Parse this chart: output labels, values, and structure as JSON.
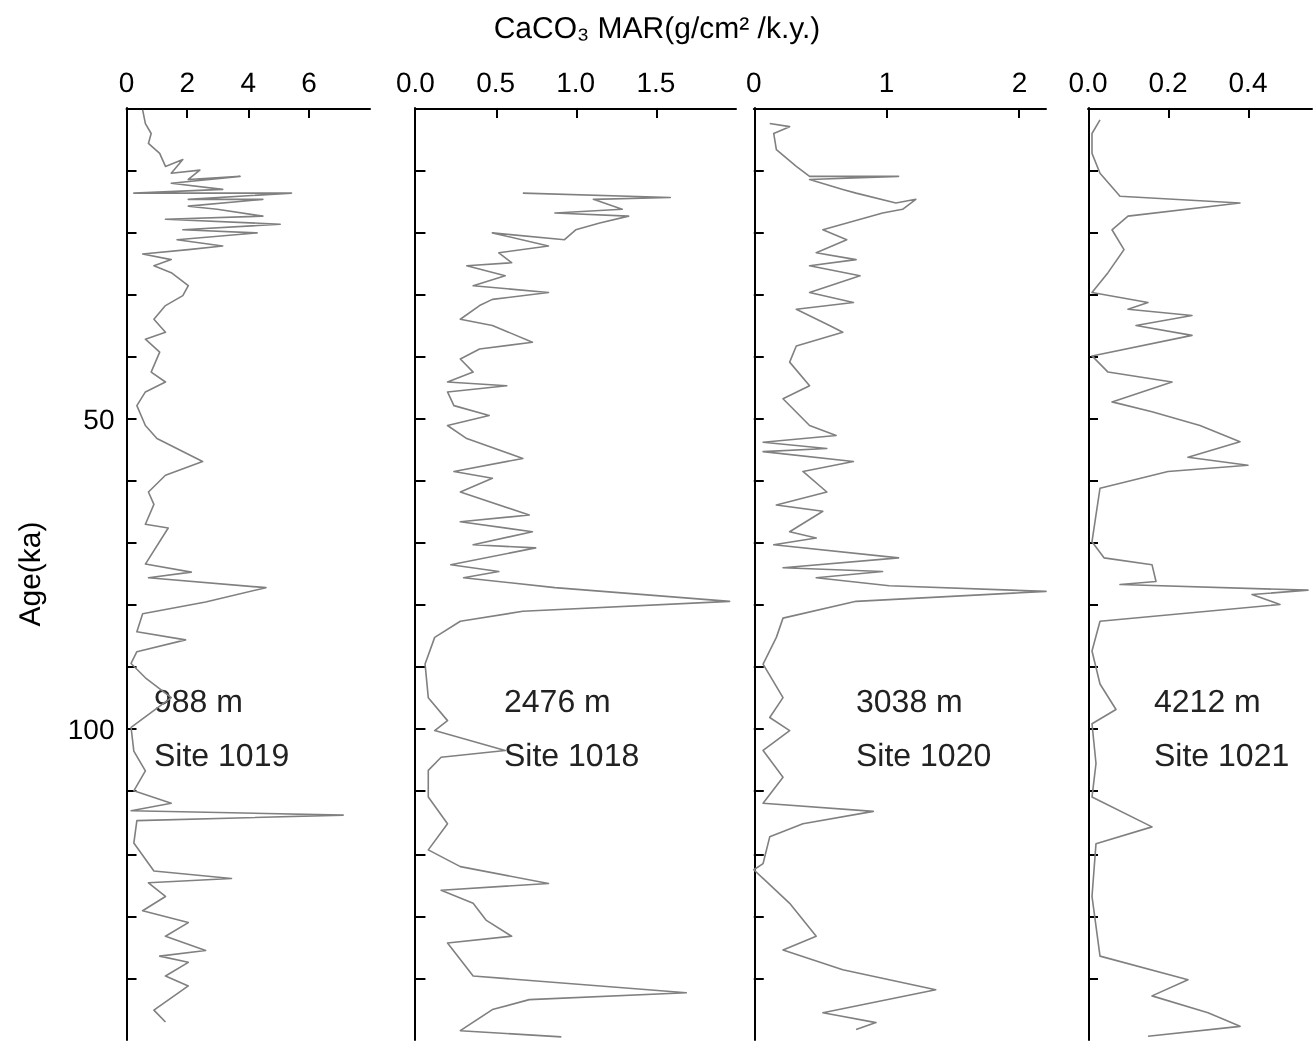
{
  "chart_data": [
    {
      "type": "line",
      "xlabel": "CaCO₃ MAR(g/cm² /k.y.)",
      "ylabel": "Age(ka)",
      "annotations": [
        "988 m\nSite 1019"
      ],
      "xlim": [
        0,
        8
      ],
      "xticks": [
        0,
        2,
        4,
        6
      ],
      "ylim": [
        150,
        0
      ],
      "yticks": [
        {
          "value": 10,
          "label": null
        },
        {
          "value": 20,
          "label": null
        },
        {
          "value": 30,
          "label": null
        },
        {
          "value": 40,
          "label": null
        },
        50,
        {
          "value": 60,
          "label": null
        },
        {
          "value": 70,
          "label": null
        },
        {
          "value": 80,
          "label": null
        },
        {
          "value": 90,
          "label": null
        },
        100,
        {
          "value": 110,
          "label": null
        },
        {
          "value": 120,
          "label": null
        },
        {
          "value": 130,
          "label": null
        },
        {
          "value": 140,
          "label": null
        }
      ],
      "series": [
        {
          "color": "#808080",
          "x": [
            0.53,
            0.62,
            0.81,
            0.72,
            1.09,
            1.28,
            1.85,
            1.47,
            2.41,
            2.03,
            3.73,
            1.47,
            3.16,
            0.24,
            5.42,
            2.03,
            4.48,
            2.03,
            2.98,
            4.48,
            1.28,
            5.05,
            1.85,
            4.29,
            1.66,
            3.16,
            2.03,
            0.53,
            1.47,
            0.9,
            1.47,
            2.03,
            1.85,
            1.28,
            0.9,
            1.28,
            0.62,
            1.09,
            0.81,
            1.28,
            0.62,
            0.34,
            0.62,
            1.0,
            2.5,
            1.28,
            0.72,
            0.9,
            0.62,
            1.37,
            0.62,
            2.13,
            0.72,
            4.58,
            2.6,
            0.53,
            0.34,
            1.94,
            0.34,
            0.15,
            0.62,
            1.47,
            0.15,
            0.24,
            0.62,
            0.24,
            1.47,
            0.15,
            7.12,
            0.34,
            0.24,
            0.9,
            3.45,
            0.72,
            1.28,
            0.53,
            2.03,
            1.28,
            2.6,
            1.09,
            2.03,
            1.28,
            2.03,
            0.9,
            1.28
          ],
          "values": [
            0.3,
            2.5,
            4.1,
            5.7,
            7.3,
            9.4,
            8.3,
            10.5,
            10.0,
            11.5,
            11.0,
            12.1,
            13.1,
            13.7,
            13.7,
            14.7,
            14.7,
            15.8,
            16.3,
            17.4,
            17.9,
            18.7,
            19.6,
            20.1,
            21.2,
            22.2,
            22.8,
            23.5,
            24.4,
            25.4,
            26.5,
            28.6,
            30.2,
            31.8,
            34.0,
            36.1,
            37.2,
            39.3,
            42.5,
            44.1,
            45.7,
            47.9,
            51.1,
            53.2,
            56.9,
            59.1,
            61.8,
            63.8,
            67.0,
            67.6,
            73.4,
            74.7,
            75.6,
            77.2,
            79.5,
            81.4,
            84.3,
            85.6,
            87.5,
            89.4,
            91.7,
            94.9,
            99.7,
            103.5,
            106.7,
            109.9,
            111.9,
            113.1,
            113.8,
            114.7,
            118.3,
            122.8,
            124.0,
            124.7,
            126.9,
            129.2,
            131.1,
            133.3,
            135.6,
            136.5,
            137.5,
            139.7,
            141.3,
            145.2,
            147.1
          ]
        }
      ]
    },
    {
      "type": "line",
      "annotations": [
        "2476 m\nSite 1018"
      ],
      "tick_labels": "x",
      "xlim": [
        0,
        2.0
      ],
      "xticks": [
        {
          "value": 0,
          "label": "0.0"
        },
        {
          "value": 0.5,
          "label": "0.5"
        },
        {
          "value": 1,
          "label": "1.0"
        },
        {
          "value": 1.5,
          "label": "1.5"
        }
      ],
      "ylim": [
        150,
        0
      ],
      "yticks": [
        {
          "value": 10,
          "label": null
        },
        {
          "value": 20,
          "label": null
        },
        {
          "value": 30,
          "label": null
        },
        {
          "value": 40,
          "label": null
        },
        {
          "value": 50,
          "label": null
        },
        {
          "value": 60,
          "label": null
        },
        {
          "value": 70,
          "label": null
        },
        {
          "value": 80,
          "label": null
        },
        {
          "value": 90,
          "label": null
        },
        {
          "value": 100,
          "label": null
        },
        {
          "value": 110,
          "label": null
        },
        {
          "value": 120,
          "label": null
        },
        {
          "value": 130,
          "label": null
        },
        {
          "value": 140,
          "label": null
        }
      ],
      "series": [
        {
          "color": "#808080",
          "x": [
            0.67,
            1.59,
            1.11,
            1.29,
            0.87,
            1.33,
            1.15,
            1.0,
            0.93,
            0.48,
            0.83,
            0.52,
            0.6,
            0.32,
            0.56,
            0.36,
            0.83,
            0.48,
            0.4,
            0.28,
            0.48,
            0.73,
            0.4,
            0.28,
            0.36,
            0.2,
            0.57,
            0.2,
            0.24,
            0.46,
            0.2,
            0.32,
            0.67,
            0.24,
            0.48,
            0.28,
            0.71,
            0.28,
            0.73,
            0.36,
            0.75,
            0.22,
            0.52,
            0.3,
            0.87,
            1.96,
            0.67,
            0.28,
            0.12,
            0.06,
            0.08,
            0.2,
            0.12,
            0.56,
            0.16,
            0.08,
            0.08,
            0.2,
            0.08,
            0.28,
            0.83,
            0.16,
            0.36,
            0.44,
            0.6,
            0.2,
            0.36,
            1.69,
            0.71,
            0.48,
            0.28,
            0.91
          ],
          "values": [
            13.7,
            14.4,
            14.7,
            16.3,
            16.9,
            17.4,
            18.5,
            19.6,
            21.2,
            20.1,
            22.2,
            23.3,
            24.9,
            25.4,
            27.0,
            28.6,
            29.7,
            30.8,
            31.8,
            34.0,
            35.0,
            37.7,
            38.8,
            40.4,
            42.5,
            44.1,
            44.7,
            45.7,
            47.9,
            49.5,
            51.1,
            53.2,
            56.4,
            58.5,
            59.6,
            61.8,
            65.5,
            66.6,
            68.2,
            70.3,
            70.8,
            73.5,
            74.6,
            75.6,
            77.2,
            79.4,
            81.0,
            82.6,
            85.2,
            89.5,
            94.9,
            98.6,
            100.2,
            103.4,
            104.5,
            106.6,
            110.9,
            115.2,
            119.4,
            122.1,
            124.8,
            125.9,
            128.0,
            130.7,
            133.3,
            134.4,
            139.7,
            142.4,
            143.5,
            145.1,
            148.5,
            149.5
          ]
        }
      ]
    },
    {
      "type": "line",
      "annotations": [
        "3038 m\nSite 1020"
      ],
      "tick_labels": "x",
      "xlim": [
        0,
        2.2
      ],
      "xticks": [
        0,
        1,
        2
      ],
      "ylim": [
        150,
        0
      ],
      "yticks": [
        {
          "value": 10,
          "label": null
        },
        {
          "value": 20,
          "label": null
        },
        {
          "value": 30,
          "label": null
        },
        {
          "value": 40,
          "label": null
        },
        {
          "value": 50,
          "label": null
        },
        {
          "value": 60,
          "label": null
        },
        {
          "value": 70,
          "label": null
        },
        {
          "value": 80,
          "label": null
        },
        {
          "value": 90,
          "label": null
        },
        {
          "value": 100,
          "label": null
        },
        {
          "value": 110,
          "label": null
        },
        {
          "value": 120,
          "label": null
        },
        {
          "value": 130,
          "label": null
        },
        {
          "value": 140,
          "label": null
        }
      ],
      "series": [
        {
          "color": "#808080",
          "x": [
            0.12,
            0.27,
            0.15,
            0.17,
            0.32,
            0.42,
            1.09,
            0.42,
            0.67,
            0.77,
            1.07,
            1.22,
            1.12,
            0.97,
            0.52,
            0.7,
            0.47,
            0.77,
            0.42,
            0.8,
            0.42,
            0.75,
            0.32,
            0.57,
            0.67,
            0.32,
            0.27,
            0.42,
            0.22,
            0.42,
            0.62,
            0.07,
            0.55,
            0.07,
            0.75,
            0.37,
            0.55,
            0.17,
            0.52,
            0.27,
            0.47,
            0.15,
            1.09,
            0.22,
            0.97,
            0.47,
            1.02,
            2.2,
            0.77,
            0.22,
            0.17,
            0.07,
            0.22,
            0.12,
            0.27,
            0.07,
            0.22,
            0.07,
            0.9,
            0.37,
            0.12,
            0.07,
            0.0,
            0.27,
            0.47,
            0.22,
            0.67,
            1.37,
            0.52,
            0.92,
            0.77
          ],
          "values": [
            2.5,
            3.0,
            4.1,
            6.7,
            9.4,
            11.0,
            11.0,
            11.5,
            13.1,
            13.7,
            15.3,
            14.7,
            16.3,
            16.9,
            19.6,
            21.2,
            23.3,
            24.4,
            25.4,
            27.0,
            29.7,
            31.3,
            32.4,
            35.0,
            36.1,
            38.3,
            40.9,
            44.7,
            46.8,
            51.1,
            52.7,
            53.8,
            54.8,
            55.3,
            56.9,
            58.5,
            61.8,
            63.9,
            64.9,
            68.2,
            69.2,
            70.3,
            72.4,
            74.0,
            74.6,
            75.6,
            76.9,
            77.8,
            79.4,
            82.1,
            85.2,
            89.5,
            94.9,
            98.1,
            100.2,
            103.4,
            107.7,
            111.9,
            113.2,
            115.2,
            117.3,
            121.6,
            122.6,
            128.0,
            133.3,
            135.5,
            138.7,
            141.9,
            145.6,
            147.2,
            148.3
          ]
        }
      ]
    },
    {
      "type": "line",
      "annotations": [
        "4212 m\nSite 1021"
      ],
      "tick_labels": "x",
      "xlim": [
        0,
        0.56
      ],
      "xticks": [
        {
          "value": 0,
          "label": "0.0"
        },
        {
          "value": 0.2,
          "label": "0.2"
        },
        {
          "value": 0.4,
          "label": "0.4"
        }
      ],
      "ylim": [
        150,
        0
      ],
      "yticks": [
        {
          "value": 10,
          "label": null
        },
        {
          "value": 20,
          "label": null
        },
        {
          "value": 30,
          "label": null
        },
        {
          "value": 40,
          "label": null
        },
        {
          "value": 50,
          "label": null
        },
        {
          "value": 60,
          "label": null
        },
        {
          "value": 70,
          "label": null
        },
        {
          "value": 80,
          "label": null
        },
        {
          "value": 90,
          "label": null
        },
        {
          "value": 100,
          "label": null
        },
        {
          "value": 110,
          "label": null
        },
        {
          "value": 120,
          "label": null
        },
        {
          "value": 130,
          "label": null
        },
        {
          "value": 140,
          "label": null
        }
      ],
      "series": [
        {
          "color": "#808080",
          "x": [
            0.03,
            0.01,
            0.01,
            0.03,
            0.08,
            0.38,
            0.1,
            0.06,
            0.09,
            0.05,
            0.01,
            0.15,
            0.1,
            0.26,
            0.12,
            0.26,
            0.01,
            0.05,
            0.21,
            0.06,
            0.16,
            0.28,
            0.38,
            0.25,
            0.4,
            0.2,
            0.03,
            0.02,
            0.01,
            0.04,
            0.16,
            0.17,
            0.08,
            0.55,
            0.41,
            0.48,
            0.03,
            0.01,
            0.03,
            0.07,
            0.01,
            0.02,
            0.01,
            0.16,
            0.02,
            0.01,
            0.03,
            0.25,
            0.16,
            0.3,
            0.38,
            0.15
          ],
          "values": [
            1.9,
            4.1,
            7.3,
            10.5,
            14.2,
            15.3,
            17.4,
            19.6,
            22.8,
            26.5,
            29.7,
            31.3,
            32.4,
            33.4,
            35.0,
            36.6,
            39.9,
            42.5,
            44.1,
            47.3,
            48.9,
            51.1,
            53.7,
            56.2,
            57.5,
            58.5,
            61.2,
            65.5,
            69.8,
            72.4,
            73.5,
            76.2,
            76.7,
            77.6,
            78.3,
            79.9,
            82.6,
            87.4,
            92.7,
            96.8,
            99.1,
            105.5,
            110.9,
            115.7,
            118.4,
            126.9,
            136.5,
            140.3,
            142.9,
            145.6,
            147.8,
            149.4
          ]
        }
      ]
    }
  ]
}
